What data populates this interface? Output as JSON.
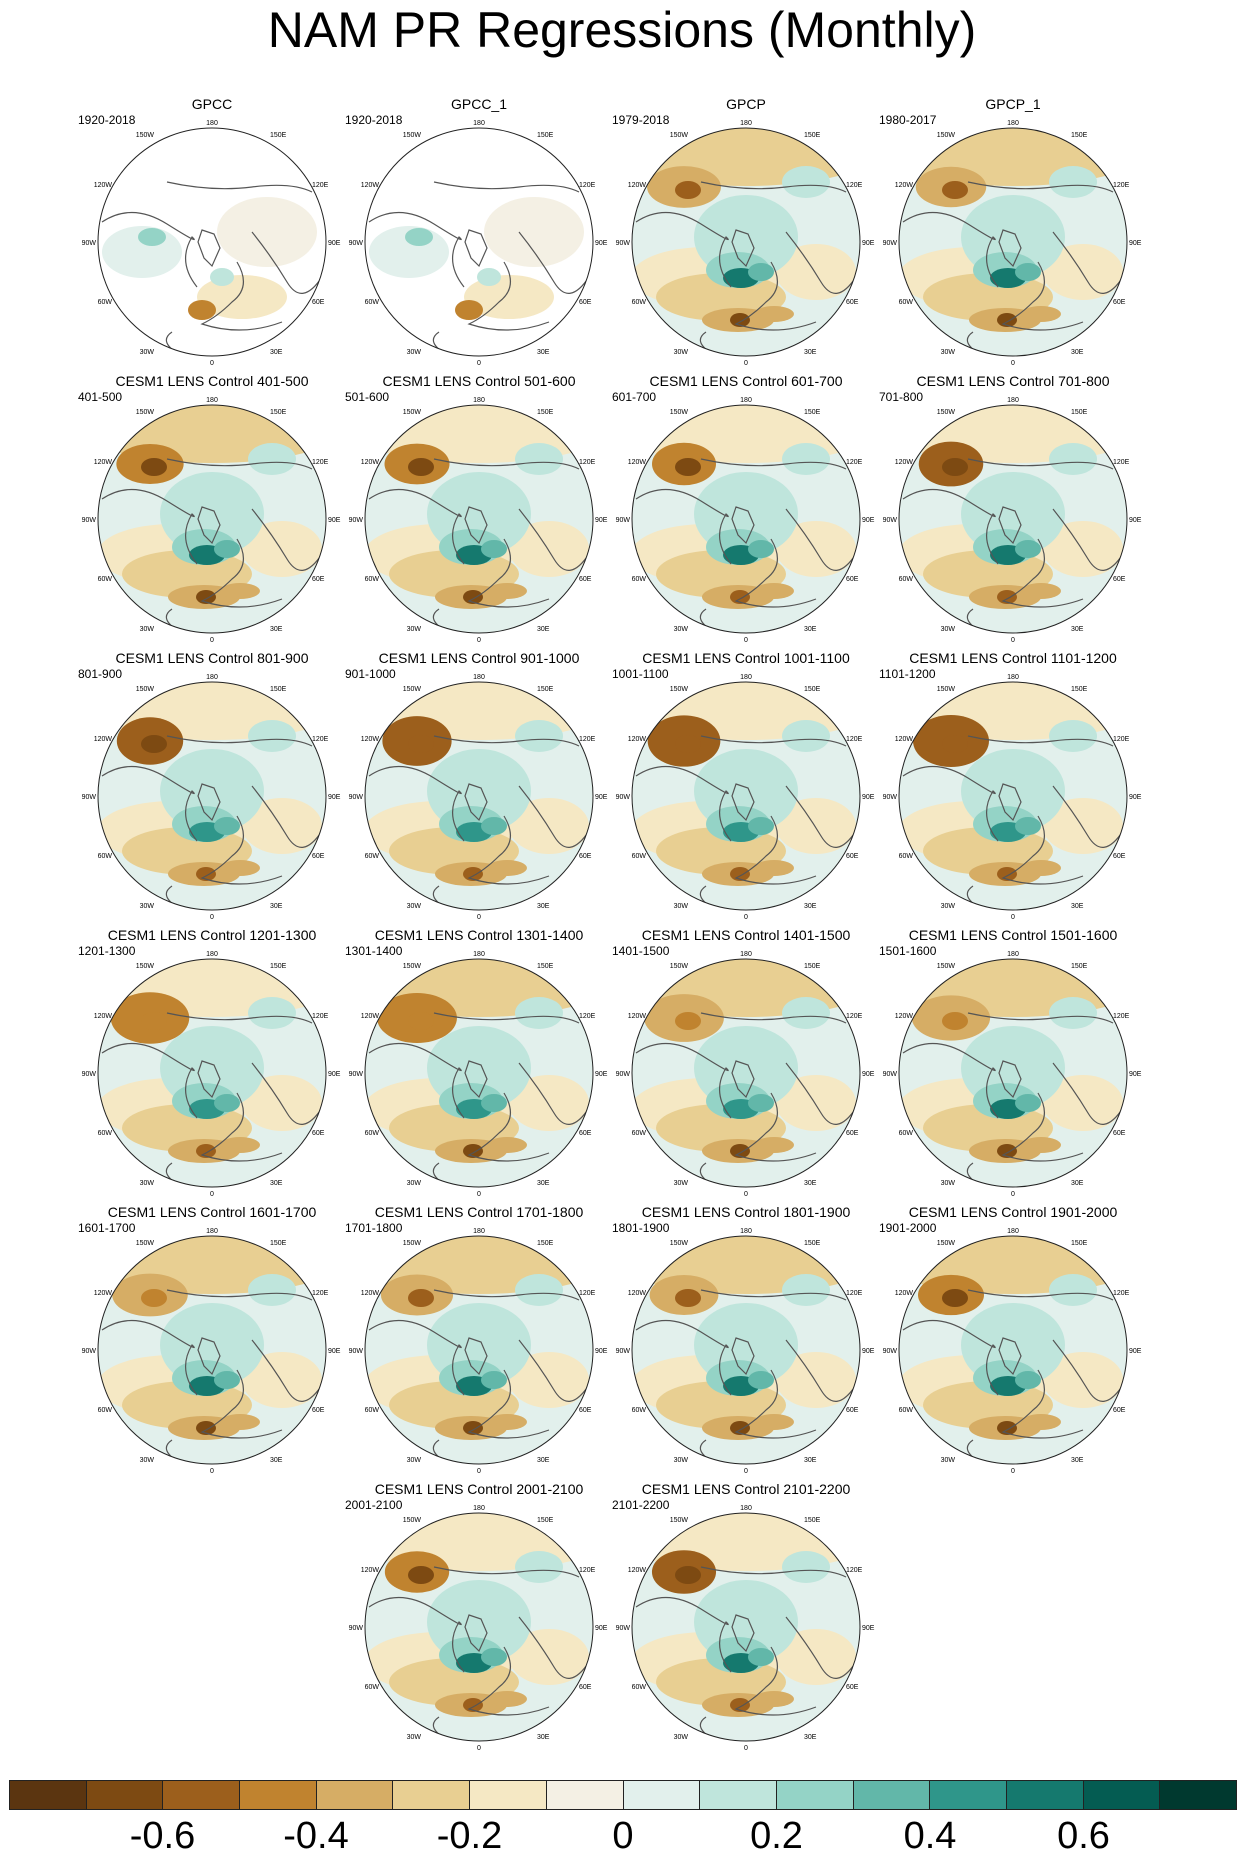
{
  "title": "NAM PR Regressions (Monthly)",
  "map_labels": {
    "top": "180",
    "bottom": "0",
    "w150": "150W",
    "e150": "150E",
    "w120": "120W",
    "e120": "120E",
    "w90": "90W",
    "e90": "90E",
    "w60": "60W",
    "e60": "60E",
    "w30": "30W",
    "e30": "30E"
  },
  "panels": [
    {
      "title": "GPCC",
      "years": "1920-2018",
      "obs": true,
      "land_only": true
    },
    {
      "title": "GPCC_1",
      "years": "1920-2018",
      "obs": true,
      "land_only": true
    },
    {
      "title": "GPCP",
      "years": "1979-2018",
      "obs": true,
      "land_only": false
    },
    {
      "title": "GPCP_1",
      "years": "1980-2017",
      "obs": true,
      "land_only": false
    },
    {
      "title": "CESM1 LENS Control 401-500",
      "years": "401-500"
    },
    {
      "title": "CESM1 LENS Control 501-600",
      "years": "501-600"
    },
    {
      "title": "CESM1 LENS Control 601-700",
      "years": "601-700"
    },
    {
      "title": "CESM1 LENS Control 701-800",
      "years": "701-800"
    },
    {
      "title": "CESM1 LENS Control 801-900",
      "years": "801-900"
    },
    {
      "title": "CESM1 LENS Control 901-1000",
      "years": "901-1000"
    },
    {
      "title": "CESM1 LENS Control 1001-1100",
      "years": "1001-1100"
    },
    {
      "title": "CESM1 LENS Control 1101-1200",
      "years": "1101-1200"
    },
    {
      "title": "CESM1 LENS Control 1201-1300",
      "years": "1201-1300"
    },
    {
      "title": "CESM1 LENS Control 1301-1400",
      "years": "1301-1400"
    },
    {
      "title": "CESM1 LENS Control 1401-1500",
      "years": "1401-1500"
    },
    {
      "title": "CESM1 LENS Control 1501-1600",
      "years": "1501-1600"
    },
    {
      "title": "CESM1 LENS Control 1601-1700",
      "years": "1601-1700"
    },
    {
      "title": "CESM1 LENS Control 1701-1800",
      "years": "1701-1800"
    },
    {
      "title": "CESM1 LENS Control 1801-1900",
      "years": "1801-1900"
    },
    {
      "title": "CESM1 LENS Control 1901-2000",
      "years": "1901-2000"
    },
    {
      "title": "CESM1 LENS Control 2001-2100",
      "years": "2001-2100"
    },
    {
      "title": "CESM1 LENS Control 2101-2200",
      "years": "2101-2200"
    }
  ],
  "colorbar": {
    "colors": [
      "#5b3510",
      "#7d4a12",
      "#9c5f1c",
      "#c0832f",
      "#d6ad65",
      "#e8cf92",
      "#f5e8c4",
      "#f4f0e4",
      "#e2f0ec",
      "#bfe5dc",
      "#94d3c6",
      "#62b7a9",
      "#2f968a",
      "#15796e",
      "#045c52",
      "#00392f"
    ],
    "labels": [
      "-0.6",
      "-0.4",
      "-0.2",
      "0",
      "0.2",
      "0.4",
      "0.6"
    ]
  }
}
